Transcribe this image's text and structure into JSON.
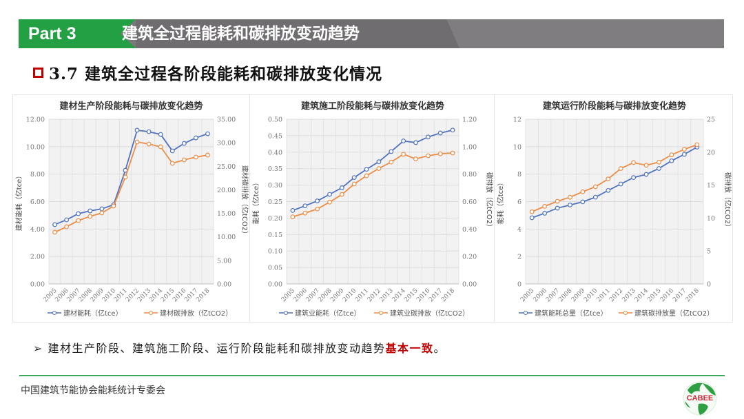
{
  "header": {
    "part_label": "Part 3",
    "title": "建筑全过程能耗和碳排放变动趋势",
    "green": "#22a043",
    "gray": "#7f7d7f"
  },
  "subtitle": {
    "text": "3.7 建筑全过程各阶段能耗和碳排放变化情况",
    "marker_color": "#c00000"
  },
  "chart_data": [
    {
      "type": "line",
      "title": "建材生产阶段能耗与碳排放变化趋势",
      "x": [
        "2005",
        "2006",
        "2007",
        "2008",
        "2009",
        "2010",
        "2011",
        "2012",
        "2013",
        "2014",
        "2015",
        "2016",
        "2017",
        "2018"
      ],
      "ylabel": "建材能耗（亿tce）",
      "ylabel_right": "建材碳排放（亿tCO2）",
      "ylim": [
        0,
        12
      ],
      "ylim_right": [
        0,
        35
      ],
      "yticks": [
        "0.00",
        "2.00",
        "4.00",
        "6.00",
        "8.00",
        "10.00",
        "12.00"
      ],
      "yticks_right": [
        "0.00",
        "5.00",
        "10.00",
        "15.00",
        "20.00",
        "25.00",
        "30.00",
        "35.00"
      ],
      "grid": true,
      "legend_position": "bottom",
      "series": [
        {
          "name": "建材能耗（亿tce）",
          "axis": "left",
          "color": "#4f72be",
          "values": [
            4.32,
            4.67,
            5.12,
            5.32,
            5.47,
            5.77,
            8.28,
            11.2,
            11.09,
            10.89,
            9.69,
            10.24,
            10.64,
            10.94
          ]
        },
        {
          "name": "建材碳排放（亿tCO2）",
          "axis": "right",
          "color": "#ed8c45",
          "values": [
            10.98,
            12.15,
            13.47,
            14.35,
            15.08,
            16.55,
            22.7,
            30.17,
            29.73,
            29.14,
            25.63,
            26.36,
            26.95,
            27.38
          ]
        }
      ]
    },
    {
      "type": "line",
      "title": "建筑施工阶段能耗与碳排放变化趋势",
      "x": [
        "2005",
        "2006",
        "2007",
        "2008",
        "2009",
        "2010",
        "2011",
        "2012",
        "2013",
        "2014",
        "2015",
        "2016",
        "2017",
        "2018"
      ],
      "ylabel": "能耗（亿tce）",
      "ylabel_right": "碳排放（亿tCO2）",
      "ylim": [
        0,
        0.5
      ],
      "ylim_right": [
        0,
        1.2
      ],
      "yticks": [
        "0.00",
        "0.05",
        "0.10",
        "0.15",
        "0.20",
        "0.25",
        "0.30",
        "0.35",
        "0.40",
        "0.45",
        "0.50"
      ],
      "yticks_right": [
        "0.00",
        "0.20",
        "0.40",
        "0.60",
        "0.80",
        "1.00",
        "1.20"
      ],
      "grid": true,
      "legend_position": "bottom",
      "series": [
        {
          "name": "建筑业能耗（亿tce）",
          "axis": "left",
          "color": "#4f72be",
          "values": [
            0.223,
            0.237,
            0.252,
            0.272,
            0.292,
            0.323,
            0.348,
            0.371,
            0.402,
            0.434,
            0.429,
            0.446,
            0.458,
            0.467
          ]
        },
        {
          "name": "建筑业碳排放（亿tCO2）",
          "axis": "right",
          "color": "#ed8c45",
          "values": [
            0.489,
            0.516,
            0.546,
            0.596,
            0.652,
            0.728,
            0.788,
            0.841,
            0.888,
            0.945,
            0.911,
            0.934,
            0.948,
            0.954
          ]
        }
      ]
    },
    {
      "type": "line",
      "title": "建筑运行阶段能耗与碳排放变化趋势",
      "x": [
        "2005",
        "2006",
        "2007",
        "2008",
        "2009",
        "2010",
        "2011",
        "2012",
        "2013",
        "2014",
        "2015",
        "2016",
        "2017",
        "2018"
      ],
      "ylabel": "能耗（亿tce）",
      "ylabel_right": "碳排放（亿tCO2）",
      "ylim": [
        0,
        12
      ],
      "ylim_right": [
        0,
        25
      ],
      "yticks": [
        "0",
        "2",
        "4",
        "6",
        "8",
        "10",
        "12"
      ],
      "yticks_right": [
        "0",
        "5",
        "10",
        "15",
        "20",
        "25"
      ],
      "grid": true,
      "legend_position": "bottom",
      "series": [
        {
          "name": "建筑能耗总量（亿tce）",
          "axis": "left",
          "color": "#4f72be",
          "values": [
            4.82,
            5.15,
            5.52,
            5.75,
            5.98,
            6.32,
            6.81,
            7.28,
            7.75,
            7.98,
            8.41,
            8.97,
            9.44,
            9.97
          ]
        },
        {
          "name": "建筑碳排放量（亿tCO2）",
          "axis": "right",
          "color": "#ed8c45",
          "values": [
            10.95,
            11.78,
            12.54,
            13.16,
            13.99,
            14.75,
            15.93,
            17.52,
            18.42,
            18.01,
            18.49,
            19.6,
            20.43,
            21.13
          ]
        }
      ]
    }
  ],
  "bullet": {
    "marker": "➢",
    "text": "建材生产阶段、建筑施工阶段、运行阶段能耗和碳排放变动趋势",
    "highlight": "基本一致",
    "end": "。"
  },
  "footer": {
    "org": "中国建筑节能协会能耗统计专委会",
    "logo_text": "CABEE"
  }
}
